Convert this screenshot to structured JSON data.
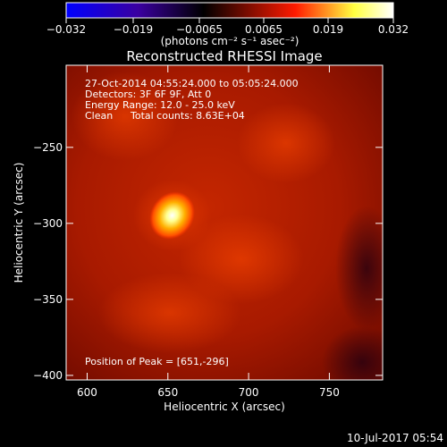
{
  "chart_data": {
    "type": "heatmap",
    "title": "Reconstructed RHESSI Image",
    "xlabel": "Heliocentric X (arcsec)",
    "ylabel": "Heliocentric Y (arcsec)",
    "xlim": [
      587,
      783
    ],
    "ylim": [
      -403,
      -196
    ],
    "x_ticks": [
      600,
      650,
      700,
      750
    ],
    "y_ticks": [
      -250,
      -300,
      -350,
      -400
    ],
    "colorbar": {
      "label": "(photons cm⁻² s⁻¹ asec⁻²)",
      "range": [
        -0.032,
        0.032
      ],
      "ticks": [
        "−0.032",
        "−0.019",
        "−0.0065",
        "0.0065",
        "0.019",
        "0.032"
      ],
      "colormap": [
        "#0000ff",
        "#3a00a0",
        "#000000",
        "#ff1a00",
        "#ffff40",
        "#ffffff"
      ]
    },
    "annotations": [
      "27-Oct-2014 04:55:24.000 to 05:05:24.000",
      "Detectors: 3F 6F 9F, Att 0",
      "Energy Range: 12.0 - 25.0 keV",
      "Clean",
      "Total counts: 8.63E+04"
    ],
    "peak_label": "Position of Peak = [651,-296]",
    "peak": {
      "x": 651,
      "y": -296
    },
    "grid": false
  },
  "footer": {
    "date": "10-Jul-2017 05:54"
  }
}
